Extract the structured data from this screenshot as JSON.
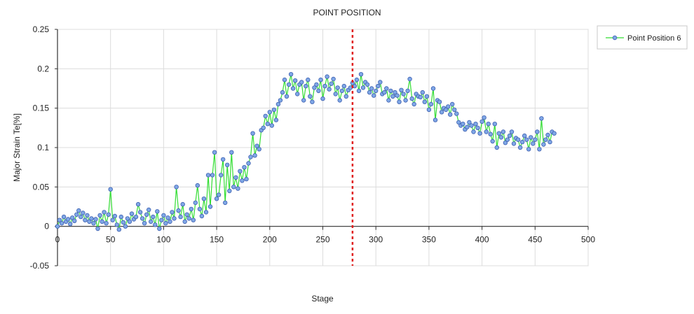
{
  "chart_data": {
    "type": "line",
    "title": "POINT POSITION",
    "xlabel": "Stage",
    "ylabel": "Major Strain Te[%]",
    "xlim": [
      0,
      500
    ],
    "ylim": [
      -0.05,
      0.25
    ],
    "xticks": [
      0,
      50,
      100,
      150,
      200,
      250,
      300,
      350,
      400,
      450,
      500
    ],
    "xtick_labels": [
      "0",
      "50",
      "100",
      "150",
      "200",
      "250",
      "300",
      "350",
      "400",
      "450",
      "500"
    ],
    "yticks": [
      -0.05,
      0,
      0.05,
      0.1,
      0.15,
      0.2,
      0.25
    ],
    "ytick_labels": [
      "-0.05",
      "0",
      "0.05",
      "0.1",
      "0.15",
      "0.2",
      "0.25"
    ],
    "grid": true,
    "legend_position": "top-right",
    "line_color": "#33dd33",
    "marker_fill": "#7fa7e6",
    "marker_stroke": "#3d5fb0",
    "reference_line": {
      "x": 278,
      "color": "#e02020",
      "style": "dotted"
    },
    "series": [
      {
        "name": "Point Position 6",
        "x": [
          0,
          2,
          4,
          6,
          8,
          10,
          12,
          14,
          16,
          18,
          20,
          22,
          24,
          26,
          28,
          30,
          32,
          34,
          36,
          38,
          40,
          42,
          44,
          46,
          48,
          50,
          52,
          54,
          56,
          58,
          60,
          62,
          64,
          66,
          68,
          70,
          72,
          74,
          76,
          78,
          80,
          82,
          84,
          86,
          88,
          90,
          92,
          94,
          96,
          98,
          100,
          102,
          104,
          106,
          108,
          110,
          112,
          114,
          116,
          118,
          120,
          122,
          124,
          126,
          128,
          130,
          132,
          134,
          136,
          138,
          140,
          142,
          144,
          146,
          148,
          150,
          152,
          154,
          156,
          158,
          160,
          162,
          164,
          166,
          168,
          170,
          172,
          174,
          176,
          178,
          180,
          182,
          184,
          186,
          188,
          190,
          192,
          194,
          196,
          198,
          200,
          202,
          204,
          206,
          208,
          210,
          212,
          214,
          216,
          218,
          220,
          222,
          224,
          226,
          228,
          230,
          232,
          234,
          236,
          238,
          240,
          242,
          244,
          246,
          248,
          250,
          252,
          254,
          256,
          258,
          260,
          262,
          264,
          266,
          268,
          270,
          272,
          274,
          276,
          278,
          280,
          282,
          284,
          286,
          288,
          290,
          292,
          294,
          296,
          298,
          300,
          302,
          304,
          306,
          308,
          310,
          312,
          314,
          316,
          318,
          320,
          322,
          324,
          326,
          328,
          330,
          332,
          334,
          336,
          338,
          340,
          342,
          344,
          346,
          348,
          350,
          352,
          354,
          356,
          358,
          360,
          362,
          364,
          366,
          368,
          370,
          372,
          374,
          376,
          378,
          380,
          382,
          384,
          386,
          388,
          390,
          392,
          394,
          396,
          398,
          400,
          402,
          404,
          406,
          408,
          410,
          412,
          414,
          416,
          418,
          420,
          422,
          424,
          426,
          428,
          430,
          432,
          434,
          436,
          438,
          440,
          442,
          444,
          446,
          448,
          450,
          452,
          454,
          456,
          458,
          460,
          462,
          464,
          466,
          468
        ],
        "values": [
          0.0,
          0.008,
          0.004,
          0.012,
          0.006,
          0.009,
          0.003,
          0.011,
          0.007,
          0.015,
          0.02,
          0.012,
          0.017,
          0.008,
          0.014,
          0.006,
          0.01,
          0.004,
          0.009,
          -0.003,
          0.014,
          0.006,
          0.018,
          0.004,
          0.015,
          0.047,
          0.008,
          0.013,
          0.002,
          -0.004,
          0.012,
          0.005,
          0.0,
          0.01,
          0.006,
          0.016,
          0.009,
          0.012,
          0.028,
          0.018,
          0.01,
          0.004,
          0.015,
          0.021,
          0.006,
          0.012,
          0.002,
          0.019,
          -0.003,
          0.008,
          0.014,
          0.004,
          0.011,
          0.006,
          0.018,
          0.01,
          0.05,
          0.02,
          0.012,
          0.028,
          0.006,
          0.015,
          0.01,
          0.022,
          0.008,
          0.03,
          0.052,
          0.022,
          0.013,
          0.035,
          0.018,
          0.065,
          0.025,
          0.065,
          0.094,
          0.035,
          0.04,
          0.065,
          0.085,
          0.03,
          0.078,
          0.045,
          0.094,
          0.05,
          0.062,
          0.048,
          0.07,
          0.058,
          0.075,
          0.06,
          0.08,
          0.088,
          0.118,
          0.09,
          0.102,
          0.098,
          0.122,
          0.125,
          0.14,
          0.13,
          0.145,
          0.128,
          0.148,
          0.135,
          0.155,
          0.16,
          0.17,
          0.186,
          0.165,
          0.18,
          0.193,
          0.175,
          0.185,
          0.168,
          0.18,
          0.183,
          0.16,
          0.178,
          0.186,
          0.165,
          0.158,
          0.176,
          0.18,
          0.172,
          0.186,
          0.162,
          0.178,
          0.19,
          0.174,
          0.181,
          0.187,
          0.168,
          0.176,
          0.16,
          0.172,
          0.178,
          0.165,
          0.173,
          0.176,
          0.182,
          0.178,
          0.186,
          0.172,
          0.193,
          0.176,
          0.183,
          0.18,
          0.17,
          0.175,
          0.166,
          0.172,
          0.178,
          0.183,
          0.168,
          0.17,
          0.175,
          0.16,
          0.172,
          0.165,
          0.17,
          0.166,
          0.158,
          0.173,
          0.168,
          0.16,
          0.172,
          0.187,
          0.162,
          0.155,
          0.168,
          0.165,
          0.164,
          0.17,
          0.158,
          0.165,
          0.148,
          0.155,
          0.175,
          0.135,
          0.16,
          0.158,
          0.145,
          0.15,
          0.148,
          0.152,
          0.142,
          0.155,
          0.148,
          0.143,
          0.132,
          0.128,
          0.13,
          0.123,
          0.126,
          0.132,
          0.128,
          0.12,
          0.13,
          0.125,
          0.118,
          0.133,
          0.138,
          0.12,
          0.13,
          0.117,
          0.108,
          0.13,
          0.1,
          0.118,
          0.113,
          0.12,
          0.106,
          0.11,
          0.115,
          0.12,
          0.105,
          0.112,
          0.11,
          0.1,
          0.107,
          0.115,
          0.11,
          0.098,
          0.113,
          0.105,
          0.11,
          0.12,
          0.098,
          0.137,
          0.104,
          0.11,
          0.116,
          0.107,
          0.12,
          0.118
        ]
      }
    ]
  }
}
